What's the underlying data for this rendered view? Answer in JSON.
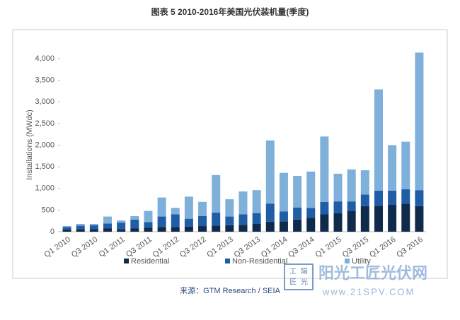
{
  "chart_data": {
    "type": "stacked-bar",
    "title": "图表 5  2010-2016年美国光伏装机量(季度)",
    "y_label": "Installations (MWdc)",
    "source": "来源：GTM Research / SEIA",
    "categories": [
      "Q1 2010",
      null,
      "Q3 2010",
      null,
      "Q1 2011",
      null,
      "Q3 2011",
      null,
      "Q1 2012",
      null,
      "Q3 2012",
      null,
      "Q1 2013",
      null,
      "Q3 2013",
      null,
      "Q1 2014",
      null,
      "Q3 2014",
      null,
      "Q1 2015",
      null,
      "Q3 2015",
      null,
      "Q1 2016",
      null,
      "Q3 2016"
    ],
    "series": [
      {
        "name": "Residential",
        "color": "#0f2a4a",
        "values": [
          50,
          60,
          60,
          80,
          60,
          80,
          90,
          110,
          110,
          120,
          130,
          140,
          150,
          160,
          180,
          230,
          240,
          280,
          320,
          400,
          430,
          480,
          590,
          600,
          620,
          650,
          590
        ]
      },
      {
        "name": "Non-Residential",
        "color": "#1f5ea6",
        "values": [
          60,
          80,
          90,
          110,
          150,
          200,
          130,
          240,
          290,
          180,
          230,
          300,
          200,
          240,
          250,
          420,
          230,
          280,
          230,
          290,
          270,
          220,
          270,
          350,
          330,
          330,
          370
        ]
      },
      {
        "name": "Utility",
        "color": "#7fb0da",
        "values": [
          20,
          40,
          30,
          160,
          50,
          80,
          260,
          440,
          150,
          510,
          330,
          870,
          400,
          530,
          530,
          1460,
          890,
          730,
          840,
          1510,
          640,
          740,
          560,
          2340,
          1050,
          1100,
          3180
        ]
      }
    ],
    "ylim": [
      0,
      4200
    ],
    "yticks": [
      0,
      500,
      {
        "value": 1000,
        "label": "1,000"
      },
      {
        "value": 1500,
        "label": "1,500"
      },
      {
        "value": 2000,
        "label": "2,000"
      },
      {
        "value": 2500,
        "label": "2,500"
      },
      {
        "value": 3000,
        "label": "3,000"
      },
      {
        "value": 3500,
        "label": "3,500"
      },
      {
        "value": 4000,
        "label": "4,000"
      }
    ],
    "legend": "bottom",
    "watermark": {
      "logo": [
        "工",
        "陽",
        "匠",
        "光"
      ],
      "text": "阳光工匠光伏网",
      "url": "www.21SPV.COM"
    }
  }
}
